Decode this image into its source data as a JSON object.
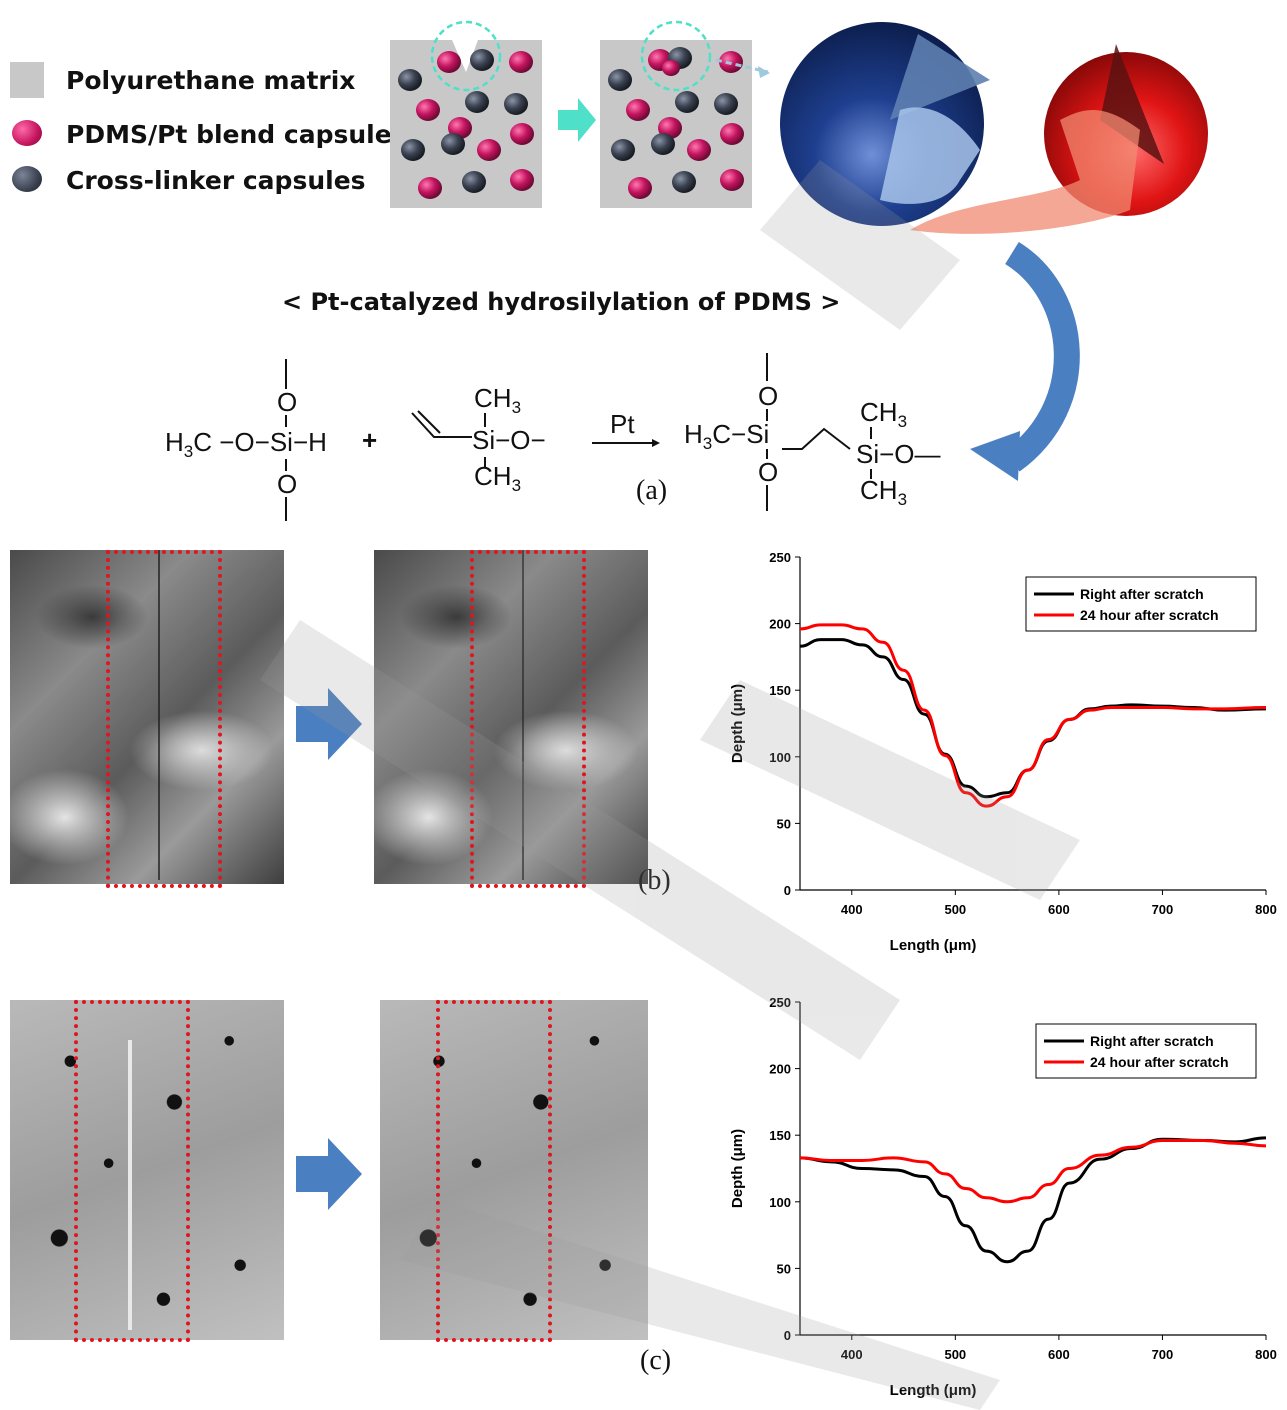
{
  "legend": {
    "items": [
      {
        "label": "Polyurethane matrix",
        "icon": "gray-square"
      },
      {
        "label": "PDMS/Pt blend capsules",
        "icon": "magenta-capsule"
      },
      {
        "label": "Cross-linker capsules",
        "icon": "dark-capsule"
      }
    ]
  },
  "scheme": {
    "title": "< Pt-catalyzed hydrosilylation of PDMS >",
    "reactant1": {
      "o_top": "O",
      "core": "H3C −O−Si−H",
      "o_bottom": "O"
    },
    "plus": "+",
    "reactant2": {
      "ch3_top": "CH3",
      "core": "Si−O−",
      "ch3_bottom": "CH3"
    },
    "catalyst": "Pt",
    "product": {
      "o_top": "O",
      "left": "H3C−Si",
      "o_bottom": "O",
      "ch3_top": "CH3",
      "right": "Si−O−",
      "ch3_bottom": "CH3"
    }
  },
  "panel_labels": {
    "a": "(a)",
    "b": "(b)",
    "c": "(c)"
  },
  "colors": {
    "capsule_magenta": "#c4145f",
    "capsule_dark": "#3b4250",
    "matrix": "#c8c8c8",
    "arrow_teal": "#4ee0c8",
    "arrow_blue": "#4a7fc1",
    "black_line": "#000000",
    "red_line": "#ff0000"
  },
  "chart_data": [
    {
      "type": "line",
      "xlabel": "Length (μm)",
      "ylabel": "Depth (μm)",
      "xlim": [
        350,
        800
      ],
      "ylim": [
        0,
        250
      ],
      "xticks": [
        400,
        500,
        600,
        700,
        800
      ],
      "yticks": [
        0,
        50,
        100,
        150,
        200,
        250
      ],
      "legend_position": "top-right",
      "series": [
        {
          "name": "Right after scratch",
          "color": "#000000",
          "x": [
            350,
            370,
            390,
            410,
            430,
            450,
            470,
            490,
            510,
            530,
            550,
            570,
            590,
            610,
            630,
            650,
            670,
            700,
            730,
            760,
            800
          ],
          "y": [
            183,
            188,
            188,
            184,
            175,
            158,
            132,
            102,
            78,
            70,
            73,
            90,
            112,
            128,
            136,
            138,
            139,
            138,
            137,
            135,
            136
          ]
        },
        {
          "name": "24 hour after scratch",
          "color": "#ff0000",
          "x": [
            350,
            370,
            390,
            410,
            430,
            450,
            470,
            490,
            510,
            530,
            550,
            570,
            590,
            610,
            630,
            650,
            670,
            700,
            730,
            760,
            800
          ],
          "y": [
            196,
            199,
            199,
            196,
            186,
            165,
            135,
            101,
            73,
            63,
            70,
            90,
            113,
            128,
            135,
            137,
            137,
            137,
            136,
            136,
            137
          ]
        }
      ]
    },
    {
      "type": "line",
      "xlabel": "Length (μm)",
      "ylabel": "Depth (μm)",
      "xlim": [
        350,
        800
      ],
      "ylim": [
        0,
        250
      ],
      "xticks": [
        400,
        500,
        600,
        700,
        800
      ],
      "yticks": [
        0,
        50,
        100,
        150,
        200,
        250
      ],
      "legend_position": "top-right",
      "series": [
        {
          "name": "Right after scratch",
          "color": "#000000",
          "x": [
            350,
            380,
            410,
            440,
            470,
            490,
            510,
            530,
            550,
            570,
            590,
            610,
            640,
            670,
            700,
            740,
            770,
            800
          ],
          "y": [
            133,
            130,
            125,
            124,
            119,
            104,
            82,
            63,
            55,
            63,
            87,
            114,
            132,
            140,
            147,
            146,
            145,
            148
          ]
        },
        {
          "name": "24 hour after scratch",
          "color": "#ff0000",
          "x": [
            350,
            380,
            410,
            440,
            470,
            490,
            510,
            530,
            550,
            570,
            590,
            610,
            640,
            670,
            700,
            740,
            770,
            800
          ],
          "y": [
            133,
            131,
            131,
            133,
            130,
            121,
            110,
            103,
            100,
            103,
            113,
            125,
            135,
            141,
            146,
            146,
            144,
            142
          ]
        }
      ]
    }
  ]
}
